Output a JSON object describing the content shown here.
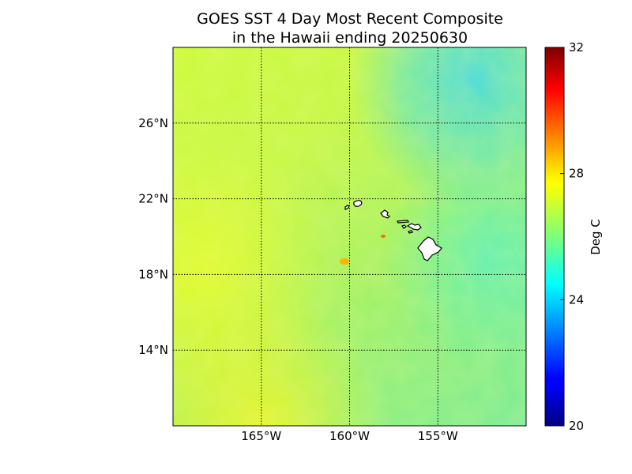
{
  "title": {
    "line1": "GOES SST 4 Day Most Recent Composite",
    "line2": "in the Hawaii ending 20250630"
  },
  "map": {
    "lon_range": [
      -170,
      -150
    ],
    "lat_range": [
      10,
      30
    ],
    "lon_ticks": [
      {
        "value": -165,
        "label": "165°W"
      },
      {
        "value": -160,
        "label": "160°W"
      },
      {
        "value": -155,
        "label": "155°W"
      }
    ],
    "lat_ticks": [
      {
        "value": 26,
        "label": "26°N"
      },
      {
        "value": 22,
        "label": "22°N"
      },
      {
        "value": 18,
        "label": "18°N"
      },
      {
        "value": 14,
        "label": "14°N"
      }
    ],
    "grid": true,
    "land_color": "#ffffff"
  },
  "colorbar": {
    "min": 20,
    "max": 32,
    "ticks": [
      {
        "value": 20,
        "label": "20"
      },
      {
        "value": 24,
        "label": "24"
      },
      {
        "value": 28,
        "label": "28"
      },
      {
        "value": 32,
        "label": "32"
      }
    ],
    "label": "Deg C",
    "colormap": "jet"
  }
}
